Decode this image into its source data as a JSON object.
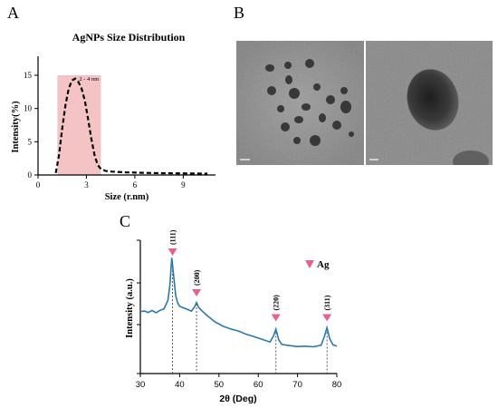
{
  "panels": {
    "a": {
      "letter": "A"
    },
    "b": {
      "letter": "B"
    },
    "c": {
      "letter": "C"
    }
  },
  "colors": {
    "size_curve": "#000000",
    "highlight": "#f4c4c4",
    "xrd_line": "#2a78ae",
    "marker": "#e8608c",
    "tem_background": "#8c8c8c"
  },
  "chart_data": [
    {
      "type": "line",
      "title": "AgNPs Size Distribution",
      "xlabel": "Size (r.nm)",
      "ylabel": "Intensity(%)",
      "xlim": [
        0,
        11
      ],
      "ylim": [
        0,
        15
      ],
      "xticks": [
        "0",
        "3",
        "6",
        "9"
      ],
      "yticks": [
        "0",
        "5",
        "10",
        "15"
      ],
      "annotation": "2 - 4 nm",
      "highlight_x": [
        1.2,
        3.9
      ],
      "grid": false,
      "series": [
        {
          "x": [
            1.1,
            1.3,
            1.5,
            1.7,
            1.9,
            2.1,
            2.3,
            2.5,
            2.7,
            2.9,
            3.1,
            3.3,
            3.5,
            3.7,
            3.9,
            4.2,
            4.6,
            5.5,
            7.0,
            8.5,
            10.5
          ],
          "y": [
            0.3,
            3.0,
            7.0,
            10.5,
            13.0,
            14.2,
            14.5,
            14.0,
            13.0,
            11.2,
            8.5,
            5.5,
            3.0,
            1.5,
            0.9,
            0.6,
            0.5,
            0.4,
            0.3,
            0.25,
            0.2
          ]
        }
      ]
    },
    {
      "type": "line",
      "xlabel": "2θ (Deg)",
      "ylabel": "Intensity (a.u.)",
      "xlim": [
        30,
        80
      ],
      "xticks": [
        "30",
        "40",
        "50",
        "60",
        "70",
        "80"
      ],
      "legend": "Ag",
      "legend_position": "top-right",
      "grid": false,
      "peaks": [
        {
          "label": "(111)",
          "x": 38.2,
          "y": 88
        },
        {
          "label": "(200)",
          "x": 44.3,
          "y": 52
        },
        {
          "label": "(220)",
          "x": 64.5,
          "y": 30
        },
        {
          "label": "(311)",
          "x": 77.5,
          "y": 30
        }
      ],
      "series": [
        {
          "x": [
            30,
            31,
            32,
            33,
            34,
            35,
            36,
            37,
            37.5,
            38,
            38.5,
            39,
            39.5,
            40,
            41,
            42,
            43,
            43.8,
            44.3,
            44.8,
            45.5,
            47,
            49,
            51,
            53,
            55,
            57,
            59,
            61,
            63,
            63.8,
            64.5,
            65.2,
            66,
            68,
            70,
            72,
            74,
            76,
            76.8,
            77.5,
            78.2,
            79,
            80
          ],
          "y": [
            45,
            46,
            45,
            47,
            45,
            47,
            48,
            55,
            68,
            92,
            75,
            58,
            52,
            49,
            48,
            47,
            46,
            50,
            54,
            50,
            47,
            42,
            36,
            32,
            29,
            27,
            24,
            22,
            20,
            18,
            23,
            30,
            21,
            17,
            16,
            15,
            15,
            14,
            15,
            22,
            30,
            20,
            15,
            14
          ]
        }
      ]
    }
  ]
}
